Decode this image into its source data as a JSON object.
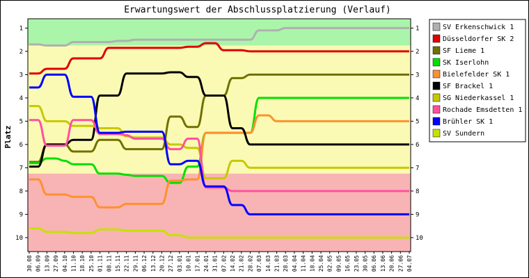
{
  "chart_data": {
    "type": "line",
    "title": "Erwartungswert der Abschlussplatzierung (Verlauf)",
    "xlabel": "",
    "ylabel": "Platz",
    "ylim": [
      0.6,
      10.6
    ],
    "y_inverted": true,
    "y_ticks": [
      "1",
      "2",
      "3",
      "4",
      "5",
      "6",
      "7",
      "8",
      "9",
      "10"
    ],
    "grid": false,
    "legend_position": "right",
    "background_bands": [
      {
        "from": 0.6,
        "to": 1.75,
        "color": "#aaf5aa",
        "meaning": "top zone (approx., expands toward top later)"
      },
      {
        "from": 1.75,
        "to": 7.25,
        "color": "#fafab4",
        "meaning": "middle zone"
      },
      {
        "from": 7.25,
        "to": 10.6,
        "color": "#f8b4b4",
        "meaning": "bottom zone"
      }
    ],
    "categories": [
      "30.08",
      "06.09",
      "13.09",
      "27.09",
      "04.10",
      "11.10",
      "18.10",
      "25.10",
      "01.11",
      "08.11",
      "15.11",
      "22.11",
      "29.11",
      "06.12",
      "13.12",
      "20.12",
      "27.12",
      "03.01",
      "10.01",
      "17.01",
      "24.01",
      "31.01",
      "07.02",
      "14.02",
      "21.02",
      "28.02",
      "07.03",
      "14.03",
      "21.03",
      "28.03",
      "04.04",
      "11.04",
      "18.04",
      "25.04",
      "02.05",
      "09.05",
      "16.05",
      "23.05",
      "30.05",
      "06.06",
      "13.06",
      "20.06",
      "27.06",
      "04.07"
    ],
    "series": [
      {
        "name": "SV Erkenschwick 1",
        "color": "#b0b0b0",
        "values": [
          1.7,
          1.7,
          1.75,
          1.75,
          1.75,
          1.6,
          1.6,
          1.6,
          1.6,
          1.6,
          1.55,
          1.55,
          1.5,
          1.5,
          1.5,
          1.5,
          1.5,
          1.5,
          1.5,
          1.5,
          1.5,
          1.5,
          1.5,
          1.5,
          1.5,
          1.5,
          1.1,
          1.1,
          1.1,
          1.0,
          1.0,
          1.0,
          1.0,
          1.0,
          1.0,
          1.0,
          1.0,
          1.0,
          1.0,
          1.0,
          1.0,
          1.0,
          1.0,
          1.0
        ]
      },
      {
        "name": "Düsseldorfer SK 2",
        "color": "#e00000",
        "values": [
          2.95,
          2.95,
          2.75,
          2.75,
          2.75,
          2.3,
          2.3,
          2.3,
          2.3,
          1.85,
          1.85,
          1.85,
          1.85,
          1.85,
          1.85,
          1.85,
          1.85,
          1.85,
          1.8,
          1.8,
          1.65,
          1.65,
          1.95,
          1.95,
          1.95,
          2.0,
          2.0,
          2.0,
          2.0,
          2.0,
          2.0,
          2.0,
          2.0,
          2.0,
          2.0,
          2.0,
          2.0,
          2.0,
          2.0,
          2.0,
          2.0,
          2.0,
          2.0,
          2.0
        ]
      },
      {
        "name": "SF Lieme 1",
        "color": "#707000",
        "values": [
          6.75,
          6.75,
          6.0,
          6.0,
          6.0,
          6.3,
          6.3,
          6.3,
          5.8,
          5.8,
          5.8,
          6.2,
          6.2,
          6.2,
          6.2,
          6.2,
          4.8,
          4.8,
          5.25,
          5.25,
          3.9,
          3.9,
          3.9,
          3.15,
          3.15,
          3.0,
          3.0,
          3.0,
          3.0,
          3.0,
          3.0,
          3.0,
          3.0,
          3.0,
          3.0,
          3.0,
          3.0,
          3.0,
          3.0,
          3.0,
          3.0,
          3.0,
          3.0,
          3.0
        ]
      },
      {
        "name": "SK Iserlohn",
        "color": "#00e000",
        "values": [
          6.8,
          6.8,
          6.6,
          6.6,
          6.7,
          6.85,
          6.85,
          6.85,
          7.25,
          7.25,
          7.25,
          7.3,
          7.35,
          7.35,
          7.35,
          7.35,
          7.65,
          7.65,
          6.95,
          6.95,
          5.5,
          5.5,
          5.5,
          5.5,
          5.5,
          5.5,
          4.0,
          4.0,
          4.0,
          4.0,
          4.0,
          4.0,
          4.0,
          4.0,
          4.0,
          4.0,
          4.0,
          4.0,
          4.0,
          4.0,
          4.0,
          4.0,
          4.0,
          4.0
        ]
      },
      {
        "name": "Bielefelder SK 1",
        "color": "#ff9030",
        "values": [
          7.5,
          7.5,
          8.15,
          8.15,
          8.15,
          8.25,
          8.25,
          8.25,
          8.7,
          8.7,
          8.7,
          8.55,
          8.55,
          8.55,
          8.55,
          8.55,
          7.55,
          7.55,
          7.5,
          7.5,
          5.5,
          5.5,
          5.5,
          5.5,
          5.5,
          5.5,
          4.75,
          4.75,
          5.0,
          5.0,
          5.0,
          5.0,
          5.0,
          5.0,
          5.0,
          5.0,
          5.0,
          5.0,
          5.0,
          5.0,
          5.0,
          5.0,
          5.0,
          5.0
        ]
      },
      {
        "name": "SF Brackel 1",
        "color": "#000000",
        "values": [
          6.95,
          6.95,
          6.0,
          6.0,
          6.0,
          5.8,
          5.8,
          5.8,
          3.9,
          3.9,
          3.9,
          2.95,
          2.95,
          2.95,
          2.95,
          2.95,
          2.9,
          2.9,
          3.1,
          3.1,
          3.9,
          3.9,
          3.9,
          5.3,
          5.3,
          6.0,
          6.0,
          6.0,
          6.0,
          6.0,
          6.0,
          6.0,
          6.0,
          6.0,
          6.0,
          6.0,
          6.0,
          6.0,
          6.0,
          6.0,
          6.0,
          6.0,
          6.0,
          6.0
        ]
      },
      {
        "name": "SG Niederkassel 1",
        "color": "#c8c800",
        "values": [
          4.35,
          4.35,
          5.0,
          5.0,
          5.0,
          5.2,
          5.2,
          5.2,
          5.3,
          5.3,
          5.3,
          5.65,
          5.7,
          5.7,
          5.7,
          5.7,
          6.0,
          6.0,
          6.15,
          6.15,
          7.45,
          7.45,
          7.45,
          6.7,
          6.7,
          7.0,
          7.0,
          7.0,
          7.0,
          7.0,
          7.0,
          7.0,
          7.0,
          7.0,
          7.0,
          7.0,
          7.0,
          7.0,
          7.0,
          7.0,
          7.0,
          7.0,
          7.0,
          7.0
        ]
      },
      {
        "name": "Rochade Emsdetten 1",
        "color": "#ff50a0",
        "values": [
          4.95,
          4.95,
          6.05,
          6.05,
          6.05,
          4.95,
          4.95,
          4.95,
          5.55,
          5.55,
          5.55,
          5.6,
          5.75,
          5.75,
          5.75,
          5.75,
          6.2,
          6.2,
          5.75,
          5.75,
          7.85,
          7.85,
          7.85,
          8.0,
          8.0,
          8.0,
          8.0,
          8.0,
          8.0,
          8.0,
          8.0,
          8.0,
          8.0,
          8.0,
          8.0,
          8.0,
          8.0,
          8.0,
          8.0,
          8.0,
          8.0,
          8.0,
          8.0,
          8.0
        ]
      },
      {
        "name": "Brühler SK 1",
        "color": "#0000ff",
        "values": [
          3.55,
          3.55,
          3.0,
          3.0,
          3.0,
          3.95,
          3.95,
          3.95,
          5.5,
          5.5,
          5.5,
          5.45,
          5.45,
          5.45,
          5.45,
          5.45,
          6.85,
          6.85,
          6.7,
          6.7,
          7.8,
          7.8,
          7.8,
          8.6,
          8.6,
          9.0,
          9.0,
          9.0,
          9.0,
          9.0,
          9.0,
          9.0,
          9.0,
          9.0,
          9.0,
          9.0,
          9.0,
          9.0,
          9.0,
          9.0,
          9.0,
          9.0,
          9.0,
          9.0
        ]
      },
      {
        "name": "SV Sundern",
        "color": "#c8e000",
        "values": [
          9.6,
          9.6,
          9.75,
          9.75,
          9.75,
          9.8,
          9.8,
          9.8,
          9.65,
          9.65,
          9.65,
          9.7,
          9.7,
          9.7,
          9.7,
          9.7,
          9.9,
          9.9,
          10.0,
          10.0,
          10.0,
          10.0,
          10.0,
          10.0,
          10.0,
          10.0,
          10.0,
          10.0,
          10.0,
          10.0,
          10.0,
          10.0,
          10.0,
          10.0,
          10.0,
          10.0,
          10.0,
          10.0,
          10.0,
          10.0,
          10.0,
          10.0,
          10.0,
          10.0
        ]
      }
    ]
  }
}
